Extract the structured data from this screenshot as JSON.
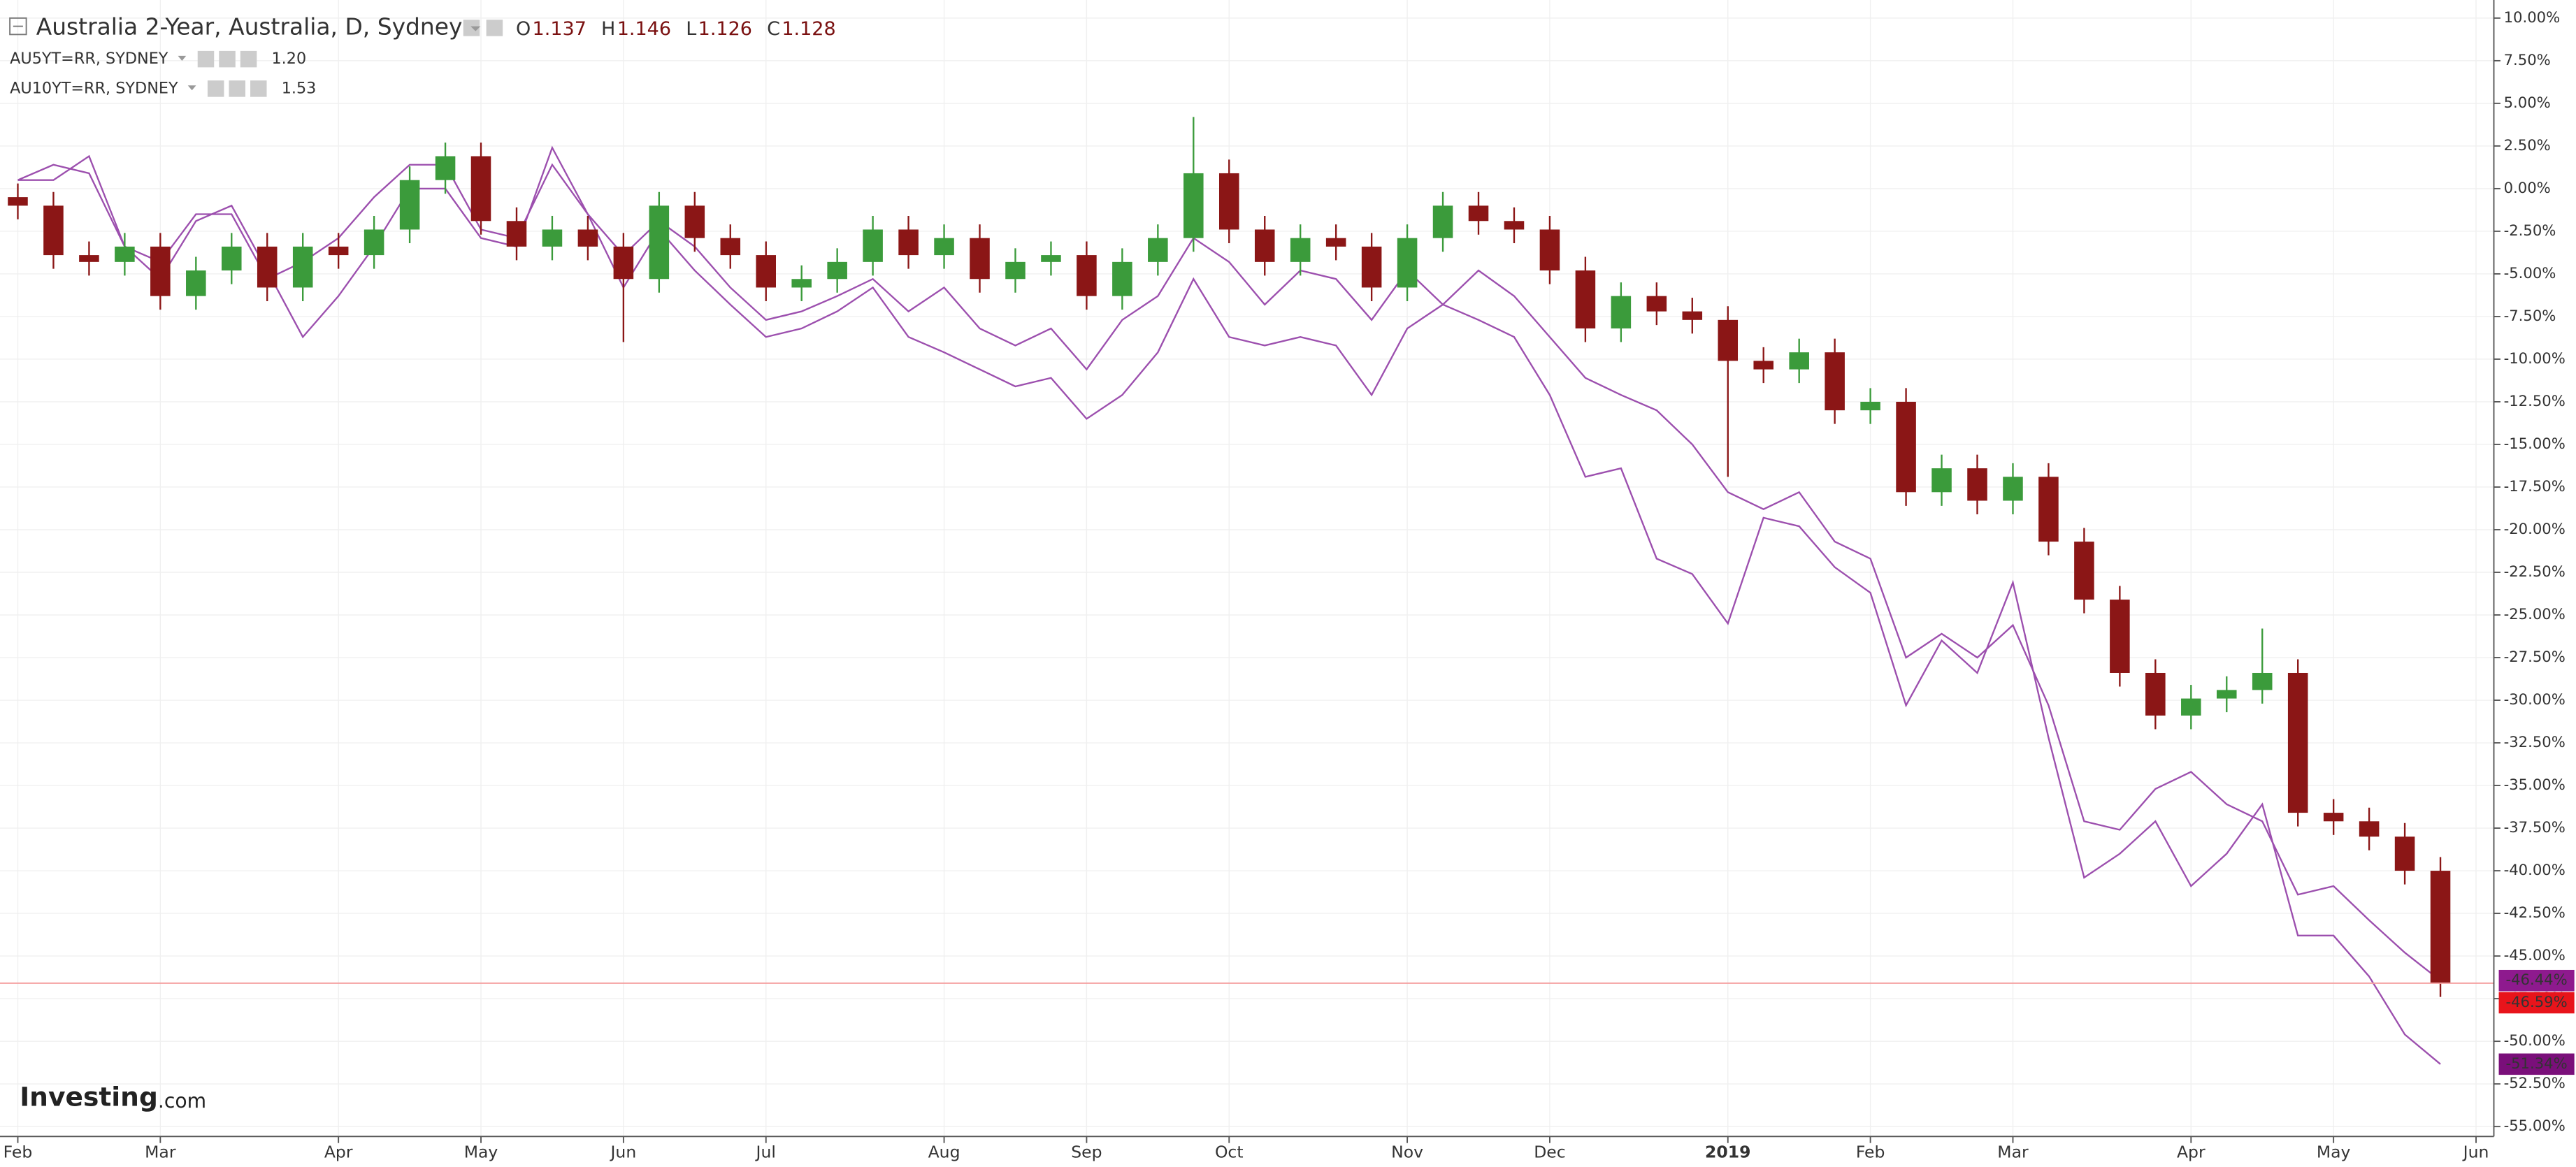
{
  "chart_data": {
    "type": "candlestick",
    "title": "Australia 2-Year, Australia, D, Sydney",
    "ohlc_legend": [
      {
        "label": "O",
        "value": "1.137"
      },
      {
        "label": "H",
        "value": "1.146"
      },
      {
        "label": "L",
        "value": "1.126"
      },
      {
        "label": "C",
        "value": "1.128"
      }
    ],
    "watermark": [
      "Investing",
      ".com"
    ],
    "categories": [
      "Feb",
      null,
      null,
      null,
      "Mar",
      null,
      null,
      null,
      null,
      "Apr",
      null,
      null,
      null,
      "May",
      null,
      null,
      null,
      "Jun",
      null,
      null,
      null,
      "Jul",
      null,
      null,
      null,
      null,
      "Aug",
      null,
      null,
      null,
      "Sep",
      null,
      null,
      null,
      "Oct",
      null,
      null,
      null,
      null,
      "Nov",
      null,
      null,
      null,
      "Dec",
      null,
      null,
      null,
      null,
      "2019",
      null,
      null,
      null,
      "Feb",
      null,
      null,
      null,
      "Mar",
      null,
      null,
      null,
      null,
      "Apr",
      null,
      null,
      null,
      "May",
      null,
      null,
      null,
      "Jun"
    ],
    "candles": {
      "name": "Australia 2-Year",
      "up_color": "#3b9b3b",
      "down_color": "#8b1616",
      "last_value_label": "-46.59%",
      "label_color": "#e8141b",
      "open": [
        -0.5,
        -1,
        -3.9,
        -4.3,
        -3.4,
        -6.3,
        -4.8,
        -3.4,
        -5.8,
        -3.4,
        -3.9,
        -2.4,
        0.5,
        1.9,
        -1.9,
        -3.4,
        -2.4,
        -3.4,
        -5.3,
        -1,
        -2.9,
        -3.9,
        -5.8,
        -5.3,
        -4.3,
        -2.4,
        -3.9,
        -2.9,
        -5.3,
        -4.3,
        -3.9,
        -6.3,
        -4.3,
        -2.9,
        0.9,
        -2.4,
        -4.3,
        -2.9,
        -3.4,
        -5.8,
        -2.9,
        -1,
        -1.9,
        -2.4,
        -4.8,
        -8.2,
        -6.3,
        -7.2,
        -7.7,
        -10.1,
        -10.6,
        -9.6,
        -13,
        -12.5,
        -17.8,
        -16.4,
        -18.3,
        -16.9,
        -20.7,
        -24.1,
        -28.4,
        -30.9,
        -29.9,
        -29.4,
        -28.4,
        -36.6,
        -37.1,
        -38,
        -40,
        null
      ],
      "high": [
        0.3,
        -0.2,
        -3.1,
        -2.6,
        -2.6,
        -4,
        -2.6,
        -2.6,
        -2.6,
        -2.6,
        -1.6,
        1.3,
        2.7,
        2.7,
        -1.1,
        -1.6,
        -1.6,
        -2.6,
        -0.2,
        -0.2,
        -2.1,
        -3.1,
        -4.5,
        -3.5,
        -1.6,
        -1.6,
        -2.1,
        -2.1,
        -3.5,
        -3.1,
        -3.1,
        -3.5,
        -2.1,
        4.2,
        1.7,
        -1.6,
        -2.1,
        -2.1,
        -2.6,
        -2.1,
        -0.2,
        -0.2,
        -1.1,
        -1.6,
        -4,
        -5.5,
        -5.5,
        -6.4,
        -6.9,
        -9.3,
        -8.8,
        -8.8,
        -11.7,
        -11.7,
        -15.6,
        -15.6,
        -16.1,
        -16.1,
        -19.9,
        -23.3,
        -27.6,
        -29.1,
        -28.6,
        -25.8,
        -27.6,
        -35.8,
        -36.3,
        -37.2,
        -39.2,
        null
      ],
      "low": [
        -1.8,
        -4.7,
        -5.1,
        -5.1,
        -7.1,
        -7.1,
        -5.6,
        -6.6,
        -6.6,
        -4.7,
        -4.7,
        -3.2,
        -0.3,
        -2.7,
        -4.2,
        -4.2,
        -4.2,
        -9,
        -6.1,
        -3.7,
        -4.7,
        -6.6,
        -6.6,
        -6.1,
        -5.1,
        -4.7,
        -4.7,
        -6.1,
        -6.1,
        -5.1,
        -7.1,
        -7.1,
        -5.1,
        -3.7,
        -3.2,
        -5.1,
        -5.1,
        -4.2,
        -6.6,
        -6.6,
        -3.7,
        -2.7,
        -3.2,
        -5.6,
        -9,
        -9,
        -8,
        -8.5,
        -16.9,
        -11.4,
        -11.4,
        -13.8,
        -13.8,
        -18.6,
        -18.6,
        -19.1,
        -19.1,
        -21.5,
        -24.9,
        -29.2,
        -31.7,
        -31.7,
        -30.7,
        -30.2,
        -37.4,
        -37.9,
        -38.8,
        -40.8,
        -47.4,
        null
      ],
      "close": [
        -1,
        -3.9,
        -4.3,
        -3.4,
        -6.3,
        -4.8,
        -3.4,
        -5.8,
        -3.4,
        -3.9,
        -2.4,
        0.5,
        1.9,
        -1.9,
        -3.4,
        -2.4,
        -3.4,
        -5.3,
        -1,
        -2.9,
        -3.9,
        -5.8,
        -5.3,
        -4.3,
        -2.4,
        -3.9,
        -2.9,
        -5.3,
        -4.3,
        -3.9,
        -6.3,
        -4.3,
        -2.9,
        0.9,
        -2.4,
        -4.3,
        -2.9,
        -3.4,
        -5.8,
        -2.9,
        -1,
        -1.9,
        -2.4,
        -4.8,
        -8.2,
        -6.3,
        -7.2,
        -7.7,
        -10.1,
        -10.6,
        -9.6,
        -13,
        -12.5,
        -17.8,
        -16.4,
        -18.3,
        -16.9,
        -20.7,
        -24.1,
        -28.4,
        -30.9,
        -29.9,
        -29.4,
        -28.4,
        -36.6,
        -37.1,
        -38,
        -40,
        -46.59,
        null
      ]
    },
    "series": [
      {
        "name": "AU5YT=RR, SYDNEY",
        "legend_value": "1.20",
        "color": "#9c4fae",
        "label_color": "#8e1a8e",
        "last_value_label": "-46.44%",
        "values": [
          0.5,
          1.4,
          0.9,
          -3.4,
          -4.3,
          -1.5,
          -1.5,
          -5.3,
          -4.3,
          -2.9,
          -0.5,
          1.4,
          1.4,
          -2.4,
          -2.9,
          1.4,
          -1.5,
          -3.9,
          -1.9,
          -3.4,
          -5.8,
          -7.7,
          -7.2,
          -6.3,
          -5.3,
          -7.2,
          -5.8,
          -8.2,
          -9.2,
          -8.2,
          -10.6,
          -7.7,
          -6.3,
          -2.9,
          -4.3,
          -6.8,
          -4.8,
          -5.3,
          -7.7,
          -4.8,
          -6.8,
          -4.8,
          -6.3,
          -8.7,
          -11.1,
          -12.1,
          -13,
          -15,
          -17.8,
          -18.8,
          -17.8,
          -20.7,
          -21.7,
          -27.5,
          -26.1,
          -27.5,
          -25.6,
          -30.3,
          -37.1,
          -37.6,
          -35.2,
          -34.2,
          -36.1,
          -37.1,
          -41.4,
          -40.9,
          -42.9,
          -44.8,
          -46.44,
          null
        ]
      },
      {
        "name": "AU10YT=RR, SYDNEY",
        "legend_value": "1.53",
        "color": "#9c4fae",
        "label_color": "#7a0f7a",
        "last_value_label": "-51.34%",
        "values": [
          0.5,
          0.5,
          1.9,
          -3.4,
          -5.3,
          -1.9,
          -1,
          -4.8,
          -8.7,
          -6.3,
          -3.4,
          0,
          0,
          -2.9,
          -3.4,
          2.4,
          -1.5,
          -5.8,
          -2.4,
          -4.8,
          -6.8,
          -8.7,
          -8.2,
          -7.2,
          -5.8,
          -8.7,
          -9.6,
          -10.6,
          -11.6,
          -11.1,
          -13.5,
          -12.1,
          -9.6,
          -5.3,
          -8.7,
          -9.2,
          -8.7,
          -9.2,
          -12.1,
          -8.2,
          -6.8,
          -7.7,
          -8.7,
          -12.1,
          -16.9,
          -16.4,
          -21.7,
          -22.6,
          -25.5,
          -19.3,
          -19.8,
          -22.2,
          -23.7,
          -30.3,
          -26.5,
          -28.4,
          -23.1,
          -32.2,
          -40.4,
          -39,
          -37.1,
          -40.9,
          -39,
          -36.1,
          -43.8,
          -43.8,
          -46.2,
          -49.6,
          -51.34,
          null
        ]
      }
    ],
    "ylim": [
      -55.58,
      11.06
    ],
    "yticks": [
      {
        "value": 10,
        "label": "10.00%"
      },
      {
        "value": 7.5,
        "label": "7.50%"
      },
      {
        "value": 5,
        "label": "5.00%"
      },
      {
        "value": 2.5,
        "label": "2.50%"
      },
      {
        "value": 0,
        "label": "0.00%"
      },
      {
        "value": -2.5,
        "label": "-2.50%"
      },
      {
        "value": -5,
        "label": "-5.00%"
      },
      {
        "value": -7.5,
        "label": "-7.50%"
      },
      {
        "value": -10,
        "label": "-10.00%"
      },
      {
        "value": -12.5,
        "label": "-12.50%"
      },
      {
        "value": -15,
        "label": "-15.00%"
      },
      {
        "value": -17.5,
        "label": "-17.50%"
      },
      {
        "value": -20,
        "label": "-20.00%"
      },
      {
        "value": -22.5,
        "label": "-22.50%"
      },
      {
        "value": -25,
        "label": "-25.00%"
      },
      {
        "value": -27.5,
        "label": "-27.50%"
      },
      {
        "value": -30,
        "label": "-30.00%"
      },
      {
        "value": -32.5,
        "label": "-32.50%"
      },
      {
        "value": -35,
        "label": "-35.00%"
      },
      {
        "value": -37.5,
        "label": "-37.50%"
      },
      {
        "value": -40,
        "label": "-40.00%"
      },
      {
        "value": -42.5,
        "label": "-42.50%"
      },
      {
        "value": -45,
        "label": "-45.00%"
      },
      {
        "value": -47.5,
        "label": "-47.50%"
      },
      {
        "value": -50,
        "label": "-50.00%"
      },
      {
        "value": -52.5,
        "label": "-52.50%"
      },
      {
        "value": -55,
        "label": "-55.00%"
      }
    ],
    "grid": true
  }
}
